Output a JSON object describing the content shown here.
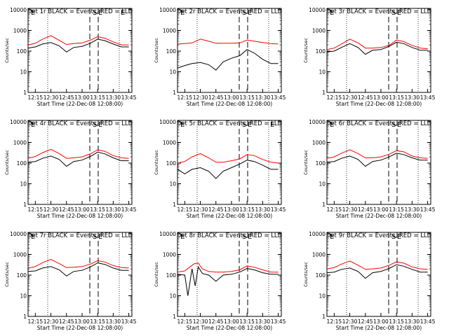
{
  "figure": {
    "xlabel": "Start Time (22-Dec-08 12:08:00)",
    "ylabel": "Counts/sec"
  },
  "chart_data": [
    {
      "type": "line",
      "title": "Det 1r BLACK = Events, RED = LLD",
      "xlabel": "Start Time (22-Dec-08 12:08:00)",
      "ylabel": "Counts/sec",
      "x_ticks": [
        "12:15",
        "12:30",
        "12:45",
        "13:00",
        "13:15",
        "13:30",
        "13:45"
      ],
      "y_ticks": [
        "1",
        "10",
        "100",
        "1000",
        "10000"
      ],
      "ylim": [
        1,
        10000
      ],
      "y_scale": "log",
      "markers": [
        "E",
        "S",
        "E",
        "E"
      ],
      "series": [
        {
          "color": "#ff0000",
          "x": [
            "12:08",
            "12:15",
            "12:22",
            "12:30",
            "12:38",
            "12:45",
            "12:52",
            "13:00",
            "13:08",
            "13:15",
            "13:22",
            "13:30",
            "13:38",
            "13:45"
          ],
          "y": [
            200,
            240,
            380,
            560,
            330,
            210,
            230,
            250,
            340,
            500,
            420,
            280,
            200,
            200
          ]
        },
        {
          "color": "#000000",
          "x": [
            "12:08",
            "12:15",
            "12:22",
            "12:30",
            "12:38",
            "12:45",
            "12:52",
            "13:00",
            "13:08",
            "13:15",
            "13:22",
            "13:30",
            "13:38",
            "13:45"
          ],
          "y": [
            140,
            160,
            220,
            260,
            180,
            90,
            150,
            170,
            240,
            380,
            320,
            220,
            160,
            160
          ]
        }
      ]
    },
    {
      "type": "line",
      "title": "Det 2r BLACK = Events, RED = LLD",
      "xlabel": "Start Time (22-Dec-08 12:08:00)",
      "ylabel": "Counts/sec",
      "x_ticks": [
        "12:15",
        "12:30",
        "12:45",
        "13:00",
        "13:15",
        "13:30",
        "13:45"
      ],
      "y_ticks": [
        "1",
        "10",
        "100",
        "1000",
        "10000"
      ],
      "ylim": [
        1,
        10000
      ],
      "y_scale": "log",
      "markers": [
        "E",
        "S",
        "E"
      ],
      "series": [
        {
          "color": "#ff0000",
          "x": [
            "12:08",
            "12:15",
            "12:22",
            "12:30",
            "12:38",
            "12:45",
            "12:52",
            "13:00",
            "13:08",
            "13:15",
            "13:22",
            "13:30",
            "13:38",
            "13:45"
          ],
          "y": [
            220,
            230,
            250,
            380,
            300,
            240,
            240,
            240,
            250,
            340,
            300,
            260,
            230,
            220
          ]
        },
        {
          "color": "#000000",
          "x": [
            "12:08",
            "12:15",
            "12:22",
            "12:30",
            "12:38",
            "12:45",
            "12:52",
            "13:00",
            "13:08",
            "13:15",
            "13:22",
            "13:30",
            "13:38",
            "13:45"
          ],
          "y": [
            15,
            20,
            25,
            28,
            22,
            12,
            30,
            45,
            60,
            120,
            80,
            40,
            25,
            25
          ]
        }
      ]
    },
    {
      "type": "line",
      "title": "Det 3r BLACK = Events, RED = LLD",
      "xlabel": "Start Time (22-Dec-08 12:08:00)",
      "ylabel": "Counts/sec",
      "x_ticks": [
        "12:15",
        "12:30",
        "12:45",
        "13:00",
        "13:15",
        "13:30",
        "13:45"
      ],
      "y_ticks": [
        "1",
        "10",
        "100",
        "1000",
        "10000"
      ],
      "ylim": [
        1,
        10000
      ],
      "y_scale": "log",
      "markers": [
        "E",
        "S",
        "E"
      ],
      "series": [
        {
          "color": "#ff0000",
          "x": [
            "12:08",
            "12:15",
            "12:22",
            "12:30",
            "12:38",
            "12:45",
            "12:52",
            "13:00",
            "13:08",
            "13:15",
            "13:22",
            "13:30",
            "13:38",
            "13:45"
          ],
          "y": [
            120,
            140,
            220,
            380,
            250,
            140,
            140,
            150,
            190,
            340,
            290,
            190,
            140,
            130
          ]
        },
        {
          "color": "#000000",
          "x": [
            "12:08",
            "12:15",
            "12:22",
            "12:30",
            "12:38",
            "12:45",
            "12:52",
            "13:00",
            "13:08",
            "13:15",
            "13:22",
            "13:30",
            "13:38",
            "13:45"
          ],
          "y": [
            90,
            100,
            150,
            230,
            150,
            70,
            110,
            120,
            170,
            270,
            230,
            150,
            110,
            110
          ]
        }
      ]
    },
    {
      "type": "line",
      "title": "Det 4r BLACK = Events, RED = LLD",
      "xlabel": "Start Time (22-Dec-08 12:08:00)",
      "ylabel": "Counts/sec",
      "x_ticks": [
        "12:15",
        "12:30",
        "12:45",
        "13:00",
        "13:15",
        "13:30",
        "13:45"
      ],
      "y_ticks": [
        "1",
        "10",
        "100",
        "1000",
        "10000"
      ],
      "ylim": [
        1,
        10000
      ],
      "y_scale": "log",
      "markers": [
        "E",
        "S",
        "E"
      ],
      "series": [
        {
          "color": "#ff0000",
          "x": [
            "12:08",
            "12:15",
            "12:22",
            "12:30",
            "12:38",
            "12:45",
            "12:52",
            "13:00",
            "13:08",
            "13:15",
            "13:22",
            "13:30",
            "13:38",
            "13:45"
          ],
          "y": [
            170,
            210,
            320,
            460,
            290,
            170,
            180,
            200,
            280,
            440,
            370,
            230,
            180,
            170
          ]
        },
        {
          "color": "#000000",
          "x": [
            "12:08",
            "12:15",
            "12:22",
            "12:30",
            "12:38",
            "12:45",
            "12:52",
            "13:00",
            "13:08",
            "13:15",
            "13:22",
            "13:30",
            "13:38",
            "13:45"
          ],
          "y": [
            110,
            120,
            170,
            220,
            150,
            70,
            120,
            140,
            210,
            340,
            280,
            180,
            130,
            130
          ]
        }
      ]
    },
    {
      "type": "line",
      "title": "Det 5r BLACK = Events, RED = LLD",
      "xlabel": "Start Time (22-Dec-08 12:08:00)",
      "ylabel": "Counts/sec",
      "x_ticks": [
        "12:15",
        "12:30",
        "12:45",
        "13:00",
        "13:15",
        "13:30",
        "13:45"
      ],
      "y_ticks": [
        "1",
        "10",
        "100",
        "1000",
        "10000"
      ],
      "ylim": [
        1,
        10000
      ],
      "y_scale": "log",
      "markers": [
        "E",
        "S",
        "E",
        "E"
      ],
      "series": [
        {
          "color": "#ff0000",
          "x": [
            "12:08",
            "12:15",
            "12:22",
            "12:30",
            "12:38",
            "12:45",
            "12:52",
            "13:00",
            "13:08",
            "13:15",
            "13:22",
            "13:30",
            "13:38",
            "13:45"
          ],
          "y": [
            100,
            120,
            200,
            290,
            180,
            110,
            110,
            130,
            160,
            260,
            230,
            150,
            110,
            100
          ]
        },
        {
          "color": "#000000",
          "x": [
            "12:08",
            "12:15",
            "12:22",
            "12:30",
            "12:38",
            "12:45",
            "12:52",
            "13:00",
            "13:08",
            "13:15",
            "13:22",
            "13:30",
            "13:38",
            "13:45"
          ],
          "y": [
            50,
            30,
            50,
            60,
            40,
            18,
            40,
            60,
            90,
            140,
            120,
            80,
            50,
            50
          ]
        }
      ]
    },
    {
      "type": "line",
      "title": "Det 6r BLACK = Events, RED = LLD",
      "xlabel": "Start Time (22-Dec-08 12:08:00)",
      "ylabel": "Counts/sec",
      "x_ticks": [
        "12:15",
        "12:30",
        "12:45",
        "13:00",
        "13:15",
        "13:30",
        "13:45"
      ],
      "y_ticks": [
        "1",
        "10",
        "100",
        "1000",
        "10000"
      ],
      "ylim": [
        1,
        10000
      ],
      "y_scale": "log",
      "markers": [
        "E",
        "S",
        "E"
      ],
      "series": [
        {
          "color": "#ff0000",
          "x": [
            "12:08",
            "12:15",
            "12:22",
            "12:30",
            "12:38",
            "12:45",
            "12:52",
            "13:00",
            "13:08",
            "13:15",
            "13:22",
            "13:30",
            "13:38",
            "13:45"
          ],
          "y": [
            170,
            200,
            300,
            440,
            290,
            180,
            180,
            200,
            270,
            400,
            350,
            220,
            180,
            170
          ]
        },
        {
          "color": "#000000",
          "x": [
            "12:08",
            "12:15",
            "12:22",
            "12:30",
            "12:38",
            "12:45",
            "12:52",
            "13:00",
            "13:08",
            "13:15",
            "13:22",
            "13:30",
            "13:38",
            "13:45"
          ],
          "y": [
            110,
            120,
            170,
            220,
            150,
            70,
            120,
            140,
            200,
            300,
            260,
            180,
            140,
            140
          ]
        }
      ]
    },
    {
      "type": "line",
      "title": "Det 7r BLACK = Events, RED = LLD",
      "xlabel": "Start Time (22-Dec-08 12:08:00)",
      "ylabel": "Counts/sec",
      "x_ticks": [
        "12:15",
        "12:30",
        "12:45",
        "13:00",
        "13:15",
        "13:30",
        "13:45"
      ],
      "y_ticks": [
        "1",
        "10",
        "100",
        "1000",
        "10000"
      ],
      "ylim": [
        1,
        10000
      ],
      "y_scale": "log",
      "markers": [
        "E",
        "S",
        "E"
      ],
      "series": [
        {
          "color": "#ff0000",
          "x": [
            "12:08",
            "12:15",
            "12:22",
            "12:30",
            "12:38",
            "12:45",
            "12:52",
            "13:00",
            "13:08",
            "13:15",
            "13:22",
            "13:30",
            "13:38",
            "13:45"
          ],
          "y": [
            220,
            260,
            400,
            580,
            360,
            230,
            240,
            260,
            340,
            500,
            430,
            290,
            230,
            220
          ]
        },
        {
          "color": "#000000",
          "x": [
            "12:08",
            "12:15",
            "12:22",
            "12:30",
            "12:38",
            "12:45",
            "12:52",
            "13:00",
            "13:08",
            "13:15",
            "13:22",
            "13:30",
            "13:38",
            "13:45"
          ],
          "y": [
            150,
            160,
            220,
            260,
            180,
            90,
            150,
            170,
            250,
            390,
            330,
            220,
            170,
            170
          ]
        }
      ]
    },
    {
      "type": "line",
      "title": "Det 8r BLACK = Events, RED = LLD",
      "xlabel": "Start Time (22-Dec-08 12:08:00)",
      "ylabel": "Counts/sec",
      "x_ticks": [
        "12:15",
        "12:30",
        "12:45",
        "13:00",
        "13:15",
        "13:30",
        "13:45"
      ],
      "y_ticks": [
        "1",
        "10",
        "100",
        "1000",
        "10000"
      ],
      "ylim": [
        1,
        10000
      ],
      "y_scale": "log",
      "markers": [
        "E",
        "S",
        "E"
      ],
      "series": [
        {
          "color": "#ff0000",
          "x": [
            "12:08",
            "12:15",
            "12:20",
            "12:24",
            "12:28",
            "12:32",
            "12:38",
            "12:45",
            "12:52",
            "13:00",
            "13:08",
            "13:15",
            "13:22",
            "13:30",
            "13:38",
            "13:45"
          ],
          "y": [
            140,
            160,
            250,
            350,
            380,
            200,
            150,
            140,
            140,
            150,
            180,
            280,
            240,
            180,
            140,
            140
          ]
        },
        {
          "color": "#000000",
          "x": [
            "12:08",
            "12:15",
            "12:18",
            "12:22",
            "12:25",
            "12:28",
            "12:32",
            "12:38",
            "12:45",
            "12:52",
            "13:00",
            "13:08",
            "13:15",
            "13:22",
            "13:30",
            "13:38",
            "13:45"
          ],
          "y": [
            110,
            100,
            10,
            200,
            30,
            250,
            120,
            100,
            50,
            100,
            110,
            140,
            210,
            180,
            130,
            110,
            110
          ]
        }
      ]
    },
    {
      "type": "line",
      "title": "Det 9r BLACK = Events, RED = LLD",
      "xlabel": "Start Time (22-Dec-08 12:08:00)",
      "ylabel": "Counts/sec",
      "x_ticks": [
        "12:15",
        "12:30",
        "12:45",
        "13:00",
        "13:15",
        "13:30",
        "13:45"
      ],
      "y_ticks": [
        "1",
        "10",
        "100",
        "1000",
        "10000"
      ],
      "ylim": [
        1,
        10000
      ],
      "y_scale": "log",
      "markers": [
        "E",
        "S",
        "E"
      ],
      "series": [
        {
          "color": "#ff0000",
          "x": [
            "12:08",
            "12:15",
            "12:22",
            "12:30",
            "12:38",
            "12:45",
            "12:52",
            "13:00",
            "13:08",
            "13:15",
            "13:22",
            "13:30",
            "13:38",
            "13:45"
          ],
          "y": [
            200,
            230,
            340,
            480,
            300,
            190,
            200,
            220,
            300,
            440,
            380,
            250,
            200,
            190
          ]
        },
        {
          "color": "#000000",
          "x": [
            "12:08",
            "12:15",
            "12:22",
            "12:30",
            "12:38",
            "12:45",
            "12:52",
            "13:00",
            "13:08",
            "13:15",
            "13:22",
            "13:30",
            "13:38",
            "13:45"
          ],
          "y": [
            130,
            140,
            190,
            220,
            150,
            70,
            130,
            150,
            210,
            320,
            270,
            190,
            140,
            140
          ]
        }
      ]
    }
  ]
}
